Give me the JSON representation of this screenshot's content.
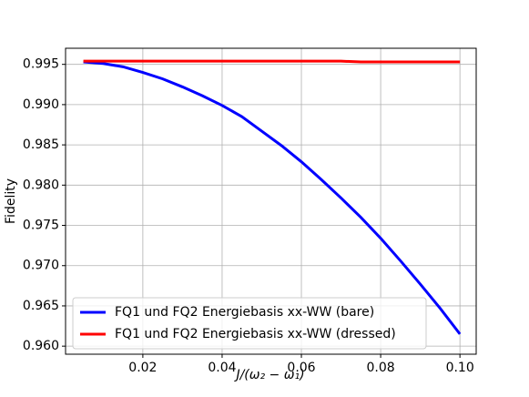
{
  "chart_data": {
    "type": "line",
    "x_label": "J/(ω₂ − ω₁)",
    "y_label": "Fidelity",
    "x": [
      0.005,
      0.01,
      0.015,
      0.02,
      0.025,
      0.03,
      0.035,
      0.04,
      0.045,
      0.05,
      0.055,
      0.06,
      0.065,
      0.07,
      0.075,
      0.08,
      0.085,
      0.09,
      0.095,
      0.1
    ],
    "series": [
      {
        "name": "FQ1 und FQ2 Energiebasis xx-WW (bare)",
        "color": "#0000ff",
        "values": [
          0.9953,
          0.9951,
          0.9947,
          0.994,
          0.9932,
          0.9922,
          0.9911,
          0.9899,
          0.9885,
          0.9867,
          0.9849,
          0.9829,
          0.9807,
          0.9784,
          0.976,
          0.9734,
          0.9706,
          0.9677,
          0.9647,
          0.9615
        ]
      },
      {
        "name": "FQ1 und FQ2 Energiebasis xx-WW (dressed)",
        "color": "#ff0000",
        "values": [
          0.9954,
          0.9954,
          0.9954,
          0.9954,
          0.9954,
          0.9954,
          0.9954,
          0.9954,
          0.9954,
          0.9954,
          0.9954,
          0.9954,
          0.9954,
          0.9954,
          0.9953,
          0.9953,
          0.9953,
          0.9953,
          0.9953,
          0.9953
        ]
      }
    ],
    "xlim": [
      0.0005,
      0.1041
    ],
    "ylim": [
      0.959,
      0.997
    ],
    "xticks": [
      0.02,
      0.04,
      0.06,
      0.08,
      {
        "value": 0.1,
        "label": "0.10"
      }
    ],
    "yticks": [
      {
        "value": 0.96,
        "label": "0.960"
      },
      0.965,
      {
        "value": 0.97,
        "label": "0.970"
      },
      0.975,
      {
        "value": 0.98,
        "label": "0.980"
      },
      0.985,
      {
        "value": 0.99,
        "label": "0.990"
      },
      0.995
    ],
    "grid": true,
    "legend": "lower-left"
  }
}
